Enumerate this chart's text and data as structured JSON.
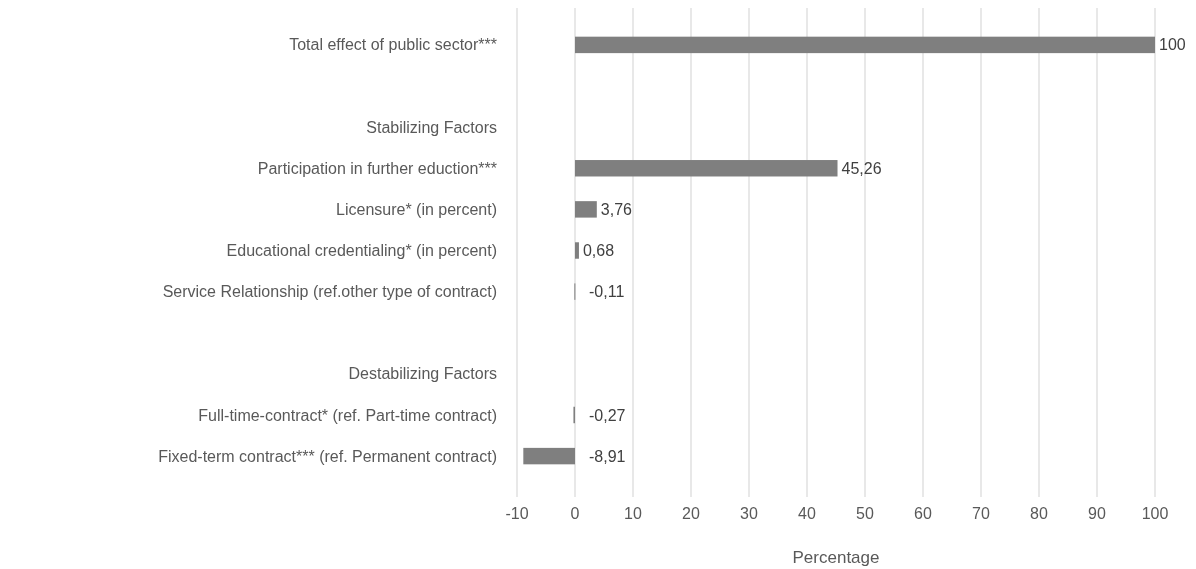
{
  "chart_data": {
    "type": "bar",
    "orientation": "horizontal",
    "xlabel": "Percentage",
    "categories": [
      "Total effect of public sector***",
      null,
      "Stabilizing Factors",
      "Participation in further eduction***",
      "Licensure* (in percent)",
      "Educational credentialing* (in percent)",
      "Service Relationship (ref.other type of contract)",
      null,
      "Destabilizing Factors",
      "Full-time-contract* (ref. Part-time contract)",
      "Fixed-term contract*** (ref. Permanent contract)"
    ],
    "values": [
      100,
      null,
      null,
      45.26,
      3.76,
      0.68,
      -0.11,
      null,
      null,
      -0.27,
      -8.91
    ],
    "value_labels": [
      "100",
      null,
      null,
      "45,26",
      "3,76",
      "0,68",
      "-0,11",
      null,
      null,
      "-0,27",
      "-8,91"
    ],
    "color": "#7f7f7f",
    "xlim": [
      -10,
      100
    ],
    "xticks": [
      -10,
      0,
      10,
      20,
      30,
      40,
      50,
      60,
      70,
      80,
      90,
      100
    ],
    "grid": "x"
  }
}
